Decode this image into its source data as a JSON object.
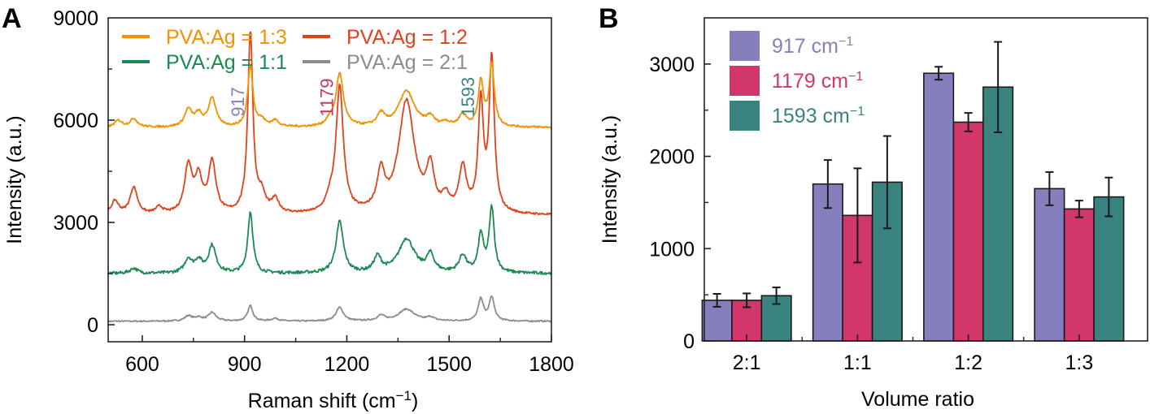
{
  "chart_data": [
    {
      "panel": "A",
      "type": "line",
      "title": "",
      "xlabel": "Raman shift (cm",
      "xlabel_sup": "−1",
      "xlabel_end": ")",
      "ylabel": "Intensity (a.u.)",
      "xlim": [
        500,
        1800
      ],
      "ylim": [
        -500,
        9000
      ],
      "xticks": [
        600,
        900,
        1200,
        1500,
        1800
      ],
      "xminor": [
        750,
        1050,
        1350,
        1650
      ],
      "yticks": [
        0,
        3000,
        6000,
        9000
      ],
      "yminor": [
        1500,
        4500,
        7500
      ],
      "grid": false,
      "legend_position": "top",
      "series": [
        {
          "name": "PVA:Ag = 1:3",
          "color": "#f39200",
          "baseline": 5780,
          "peaks": [
            [
              530,
              200
            ],
            [
              575,
              250
            ],
            [
              735,
              500
            ],
            [
              765,
              350
            ],
            [
              805,
              850
            ],
            [
              917,
              1800
            ],
            [
              950,
              180
            ],
            [
              990,
              180
            ],
            [
              1150,
              150
            ],
            [
              1179,
              1550
            ],
            [
              1300,
              350
            ],
            [
              1375,
              1050
            ],
            [
              1445,
              250
            ],
            [
              1490,
              120
            ],
            [
              1540,
              350
            ],
            [
              1593,
              1300
            ],
            [
              1625,
              1800
            ]
          ]
        },
        {
          "name": "PVA:Ag = 1:2",
          "color": "#e0431c",
          "baseline": 3200,
          "peaks": [
            [
              520,
              400
            ],
            [
              575,
              800
            ],
            [
              650,
              200
            ],
            [
              735,
              1400
            ],
            [
              765,
              1000
            ],
            [
              805,
              1500
            ],
            [
              917,
              5300
            ],
            [
              950,
              500
            ],
            [
              990,
              400
            ],
            [
              1150,
              300
            ],
            [
              1179,
              3700
            ],
            [
              1300,
              1100
            ],
            [
              1375,
              3300
            ],
            [
              1445,
              1200
            ],
            [
              1490,
              400
            ],
            [
              1540,
              1300
            ],
            [
              1593,
              3200
            ],
            [
              1625,
              4500
            ]
          ]
        },
        {
          "name": "PVA:Ag = 1:1",
          "color": "#1b8a55",
          "baseline": 1500,
          "peaks": [
            [
              575,
              150
            ],
            [
              735,
              400
            ],
            [
              765,
              350
            ],
            [
              805,
              800
            ],
            [
              917,
              1800
            ],
            [
              1179,
              1500
            ],
            [
              1290,
              450
            ],
            [
              1375,
              1000
            ],
            [
              1445,
              500
            ],
            [
              1540,
              500
            ],
            [
              1593,
              1100
            ],
            [
              1625,
              1900
            ]
          ]
        },
        {
          "name": "PVA:Ag = 2:1",
          "color": "#8c8c8c",
          "baseline": 100,
          "peaks": [
            [
              735,
              150
            ],
            [
              765,
              100
            ],
            [
              805,
              250
            ],
            [
              917,
              450
            ],
            [
              990,
              80
            ],
            [
              1179,
              400
            ],
            [
              1300,
              150
            ],
            [
              1375,
              350
            ],
            [
              1445,
              100
            ],
            [
              1593,
              650
            ],
            [
              1625,
              700
            ]
          ]
        }
      ],
      "annotations": [
        {
          "text": "917",
          "x": 917,
          "y": 6100,
          "color": "#8580bd"
        },
        {
          "text": "1179",
          "x": 1179,
          "y": 6100,
          "color": "#c8336a"
        },
        {
          "text": "1593",
          "x": 1593,
          "y": 6100,
          "color": "#3a847f"
        }
      ]
    },
    {
      "panel": "B",
      "type": "bar",
      "title": "",
      "xlabel": "Volume ratio",
      "ylabel": "Intensity (a.u.)",
      "ylim": [
        0,
        3500
      ],
      "yticks": [
        0,
        1000,
        2000,
        3000
      ],
      "yminor": [
        500,
        1500,
        2500
      ],
      "grid": false,
      "legend_position": "top-left",
      "categories": [
        "2:1",
        "1:1",
        "1:2",
        "1:3"
      ],
      "series": [
        {
          "name": "917 cm",
          "sup": "−1",
          "color": "#8580bd",
          "values": [
            440,
            1700,
            2900,
            1650
          ],
          "errors": [
            70,
            260,
            70,
            180
          ]
        },
        {
          "name": "1179 cm",
          "sup": "−1",
          "color": "#d1376b",
          "values": [
            440,
            1360,
            2370,
            1430
          ],
          "errors": [
            75,
            510,
            100,
            90
          ]
        },
        {
          "name": "1593 cm",
          "sup": "−1",
          "color": "#3a847f",
          "values": [
            490,
            1720,
            2750,
            1560
          ],
          "errors": [
            90,
            500,
            490,
            210
          ]
        }
      ]
    }
  ]
}
